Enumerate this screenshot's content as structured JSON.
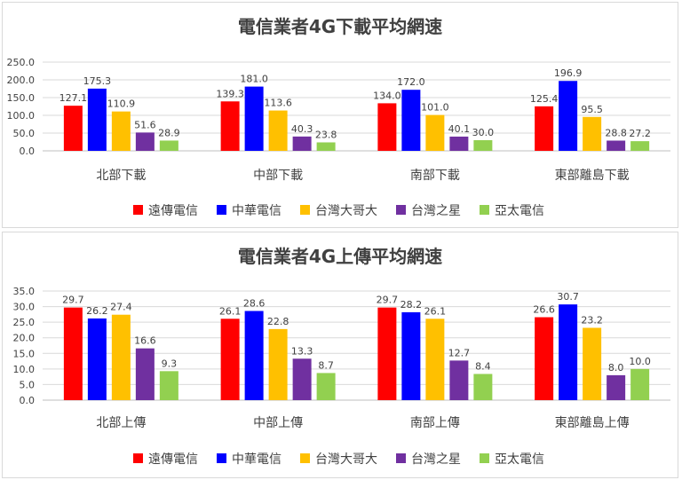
{
  "chart_data": [
    {
      "type": "bar",
      "title": "電信業者4G下載平均網速",
      "categories": [
        "北部下載",
        "中部下載",
        "南部下載",
        "東部離島下載"
      ],
      "ylim": [
        0,
        250
      ],
      "yticks": [
        "0.0",
        "50.0",
        "100.0",
        "150.0",
        "200.0",
        "250.0"
      ],
      "grid": true,
      "legend_position": "bottom",
      "series": [
        {
          "name": "遠傳電信",
          "color": "#ff0000",
          "values": [
            127.1,
            139.3,
            134.0,
            125.4
          ],
          "labels": [
            "127.1",
            "139.3",
            "134.0",
            "125.4"
          ]
        },
        {
          "name": "中華電信",
          "color": "#0000ff",
          "values": [
            175.3,
            181.0,
            172.0,
            196.9
          ],
          "labels": [
            "175.3",
            "181.0",
            "172.0",
            "196.9"
          ]
        },
        {
          "name": "台灣大哥大",
          "color": "#ffc000",
          "values": [
            110.9,
            113.6,
            101.0,
            95.5
          ],
          "labels": [
            "110.9",
            "113.6",
            "101.0",
            "95.5"
          ]
        },
        {
          "name": "台灣之星",
          "color": "#7030a0",
          "values": [
            51.6,
            40.3,
            40.1,
            28.8
          ],
          "labels": [
            "51.6",
            "40.3",
            "40.1",
            "28.8"
          ]
        },
        {
          "name": "亞太電信",
          "color": "#92d050",
          "values": [
            28.9,
            23.8,
            30.0,
            27.2
          ],
          "labels": [
            "28.9",
            "23.8",
            "30.0",
            "27.2"
          ]
        }
      ]
    },
    {
      "type": "bar",
      "title": "電信業者4G上傳平均網速",
      "categories": [
        "北部上傳",
        "中部上傳",
        "南部上傳",
        "東部離島上傳"
      ],
      "ylim": [
        0,
        35
      ],
      "yticks": [
        "0.0",
        "5.0",
        "10.0",
        "15.0",
        "20.0",
        "25.0",
        "30.0",
        "35.0"
      ],
      "grid": true,
      "legend_position": "bottom",
      "series": [
        {
          "name": "遠傳電信",
          "color": "#ff0000",
          "values": [
            29.7,
            26.1,
            29.7,
            26.6
          ],
          "labels": [
            "29.7",
            "26.1",
            "29.7",
            "26.6"
          ]
        },
        {
          "name": "中華電信",
          "color": "#0000ff",
          "values": [
            26.2,
            28.6,
            28.2,
            30.7
          ],
          "labels": [
            "26.2",
            "28.6",
            "28.2",
            "30.7"
          ]
        },
        {
          "name": "台灣大哥大",
          "color": "#ffc000",
          "values": [
            27.4,
            22.8,
            26.1,
            23.2
          ],
          "labels": [
            "27.4",
            "22.8",
            "26.1",
            "23.2"
          ]
        },
        {
          "name": "台灣之星",
          "color": "#7030a0",
          "values": [
            16.6,
            13.3,
            12.7,
            8.0
          ],
          "labels": [
            "16.6",
            "13.3",
            "12.7",
            "8.0"
          ]
        },
        {
          "name": "亞太電信",
          "color": "#92d050",
          "values": [
            9.3,
            8.7,
            8.4,
            10.0
          ],
          "labels": [
            "9.3",
            "8.7",
            "8.4",
            "10.0"
          ]
        }
      ]
    }
  ]
}
